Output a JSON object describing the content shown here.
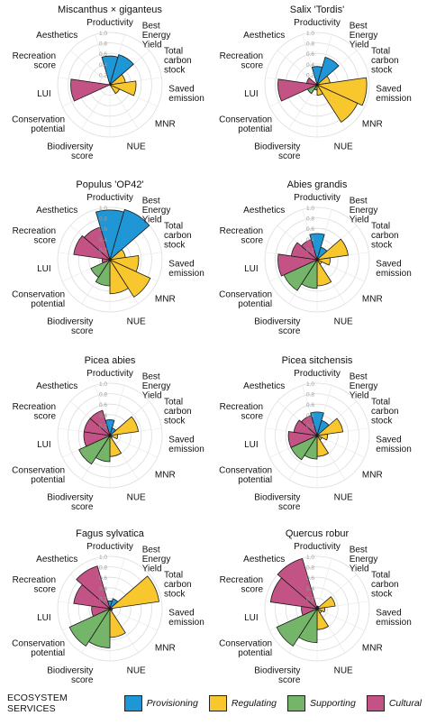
{
  "chart_data": {
    "type": "polar-bar",
    "axes": [
      "Productivity",
      "Best Energy Yield",
      "Total carbon stock",
      "Saved emission",
      "MNR",
      "NUE",
      "Biodiversity score",
      "Conservation potential",
      "LUI",
      "Recreation score",
      "Aesthetics"
    ],
    "axis_groups": [
      "Provisioning",
      "Provisioning",
      "Regulating",
      "Regulating",
      "Regulating",
      "Regulating",
      "Supporting",
      "Supporting",
      "Cultural",
      "Cultural",
      "Cultural"
    ],
    "rlim": [
      0,
      1.0
    ],
    "radial_ticks": [
      "0.2",
      "0.4",
      "0.6",
      "0.8",
      "1.0"
    ],
    "grid": true,
    "panels": [
      {
        "title": "Miscanthus × giganteus",
        "values": [
          0.55,
          0.6,
          0.3,
          0.5,
          0.2,
          0.0,
          0.0,
          0.0,
          0.75,
          0.0,
          0.0
        ]
      },
      {
        "title": "Salix 'Tordis'",
        "values": [
          0.35,
          0.55,
          0.25,
          0.95,
          0.85,
          0.2,
          0.1,
          0.2,
          0.75,
          0.2,
          0.0
        ]
      },
      {
        "title": "Populus 'OP42'",
        "values": [
          0.95,
          1.0,
          0.3,
          0.55,
          0.85,
          0.65,
          0.5,
          0.4,
          0.15,
          0.7,
          0.65
        ]
      },
      {
        "title": "Abies grandis",
        "values": [
          0.5,
          0.25,
          0.6,
          0.25,
          0.1,
          0.5,
          0.55,
          0.7,
          0.75,
          0.5,
          0.4
        ]
      },
      {
        "title": "Picea abies",
        "values": [
          0.3,
          0.15,
          0.55,
          0.15,
          0.05,
          0.4,
          0.5,
          0.65,
          0.5,
          0.5,
          0.5
        ]
      },
      {
        "title": "Picea sitchensis",
        "values": [
          0.45,
          0.3,
          0.5,
          0.2,
          0.1,
          0.4,
          0.45,
          0.55,
          0.55,
          0.45,
          0.4
        ]
      },
      {
        "title": "Fagus sylvatica",
        "values": [
          0.15,
          0.2,
          0.95,
          0.05,
          0.05,
          0.55,
          0.75,
          0.85,
          0.35,
          0.7,
          0.85
        ]
      },
      {
        "title": "Quercus robur",
        "values": [
          0.05,
          0.05,
          0.35,
          0.15,
          0.1,
          0.4,
          0.65,
          0.85,
          0.3,
          0.9,
          1.0
        ]
      }
    ]
  },
  "legend": {
    "title": "ECOSYSTEM SERVICES",
    "items": [
      {
        "label": "Provisioning",
        "color": "#1f96d6"
      },
      {
        "label": "Regulating",
        "color": "#f8c72e"
      },
      {
        "label": "Supporting",
        "color": "#74b56a"
      },
      {
        "label": "Cultural",
        "color": "#c35384"
      }
    ]
  }
}
